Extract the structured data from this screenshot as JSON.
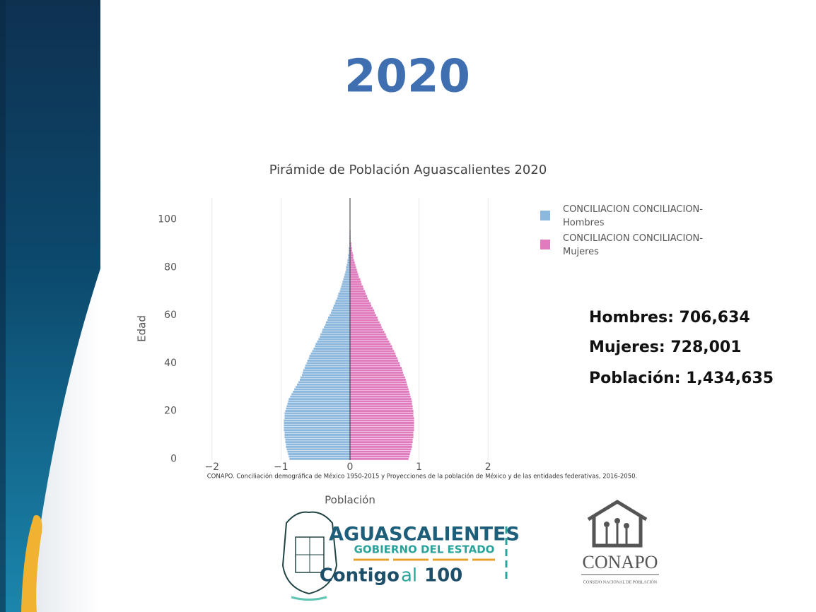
{
  "slide": {
    "year_heading": "2020",
    "stats": [
      "Hombres: 706,634",
      "Mujeres: 728,001",
      "Población: 1,434,635"
    ],
    "logo_state": {
      "name": "AGUASCALIENTES",
      "subtitle": "GOBIERNO DEL ESTADO",
      "slogan_a": "Contigo",
      "slogan_b": "al",
      "slogan_c": "100"
    },
    "logo_conapo": {
      "name": "CONAPO",
      "subtitle": "CONSEJO NACIONAL DE POBLACIÓN"
    }
  },
  "chart_data": {
    "type": "pyramid",
    "title": "Pirámide de Población Aguascalientes 2020",
    "y_label": "Edad",
    "x_label": "Población",
    "source": "CONAPO. Conciliación demográfica de México 1950-2015 y Proyecciones de la población de México y de las entidades federativas, 2016-2050.",
    "y": [
      0,
      1,
      2,
      3,
      4,
      5,
      6,
      7,
      8,
      9,
      10,
      11,
      12,
      13,
      14,
      15,
      16,
      17,
      18,
      19,
      20,
      21,
      22,
      23,
      24,
      25,
      26,
      27,
      28,
      29,
      30,
      31,
      32,
      33,
      34,
      35,
      36,
      37,
      38,
      39,
      40,
      41,
      42,
      43,
      44,
      45,
      46,
      47,
      48,
      49,
      50,
      51,
      52,
      53,
      54,
      55,
      56,
      57,
      58,
      59,
      60,
      61,
      62,
      63,
      64,
      65,
      66,
      67,
      68,
      69,
      70,
      71,
      72,
      73,
      74,
      75,
      76,
      77,
      78,
      79,
      80,
      81,
      82,
      83,
      84,
      85,
      86,
      87,
      88,
      89,
      90,
      91,
      92,
      93,
      94,
      95,
      96,
      97,
      98,
      99,
      100
    ],
    "series": [
      {
        "name": "CONCILIACION CONCILIACION-Hombres",
        "color": "#8db8de",
        "values": [
          -0.88,
          -0.89,
          -0.9,
          -0.91,
          -0.92,
          -0.93,
          -0.93,
          -0.94,
          -0.94,
          -0.95,
          -0.95,
          -0.95,
          -0.96,
          -0.96,
          -0.96,
          -0.96,
          -0.96,
          -0.95,
          -0.95,
          -0.95,
          -0.94,
          -0.93,
          -0.92,
          -0.91,
          -0.9,
          -0.89,
          -0.87,
          -0.85,
          -0.83,
          -0.81,
          -0.79,
          -0.77,
          -0.75,
          -0.73,
          -0.72,
          -0.7,
          -0.69,
          -0.68,
          -0.66,
          -0.65,
          -0.63,
          -0.62,
          -0.6,
          -0.59,
          -0.57,
          -0.55,
          -0.53,
          -0.51,
          -0.5,
          -0.48,
          -0.46,
          -0.44,
          -0.43,
          -0.41,
          -0.4,
          -0.38,
          -0.36,
          -0.35,
          -0.33,
          -0.32,
          -0.3,
          -0.28,
          -0.27,
          -0.25,
          -0.24,
          -0.22,
          -0.21,
          -0.19,
          -0.18,
          -0.17,
          -0.15,
          -0.14,
          -0.13,
          -0.12,
          -0.11,
          -0.1,
          -0.09,
          -0.08,
          -0.07,
          -0.06,
          -0.06,
          -0.05,
          -0.04,
          -0.04,
          -0.03,
          -0.03,
          -0.02,
          -0.02,
          -0.02,
          -0.01,
          -0.01,
          -0.01,
          -0.01,
          -0.01,
          0,
          0,
          0,
          0,
          0,
          0,
          0
        ]
      },
      {
        "name": "CONCILIACION CONCILIACION-Mujeres",
        "color": "#e07cbd",
        "values": [
          0.85,
          0.86,
          0.87,
          0.88,
          0.89,
          0.9,
          0.9,
          0.91,
          0.91,
          0.92,
          0.92,
          0.92,
          0.93,
          0.93,
          0.93,
          0.93,
          0.93,
          0.93,
          0.92,
          0.92,
          0.92,
          0.91,
          0.91,
          0.9,
          0.9,
          0.89,
          0.88,
          0.87,
          0.86,
          0.85,
          0.84,
          0.83,
          0.82,
          0.81,
          0.8,
          0.78,
          0.77,
          0.76,
          0.75,
          0.73,
          0.72,
          0.7,
          0.69,
          0.67,
          0.66,
          0.64,
          0.62,
          0.61,
          0.59,
          0.57,
          0.55,
          0.53,
          0.52,
          0.5,
          0.48,
          0.46,
          0.45,
          0.43,
          0.41,
          0.4,
          0.38,
          0.36,
          0.35,
          0.33,
          0.31,
          0.3,
          0.28,
          0.26,
          0.25,
          0.23,
          0.22,
          0.2,
          0.19,
          0.17,
          0.16,
          0.15,
          0.13,
          0.12,
          0.11,
          0.1,
          0.09,
          0.08,
          0.07,
          0.06,
          0.05,
          0.05,
          0.04,
          0.03,
          0.03,
          0.02,
          0.02,
          0.01,
          0.01,
          0.01,
          0.01,
          0.01,
          0,
          0,
          0,
          0,
          0
        ]
      }
    ],
    "xlim": [
      -2.1,
      2.1
    ],
    "xticks": [
      {
        "value": -2,
        "label": "−2"
      },
      {
        "value": -1,
        "label": "−1"
      },
      0,
      1,
      2
    ],
    "ylim": [
      -0.5,
      109
    ],
    "yticks": [
      0,
      20,
      40,
      60,
      80,
      100
    ],
    "grid": true
  }
}
